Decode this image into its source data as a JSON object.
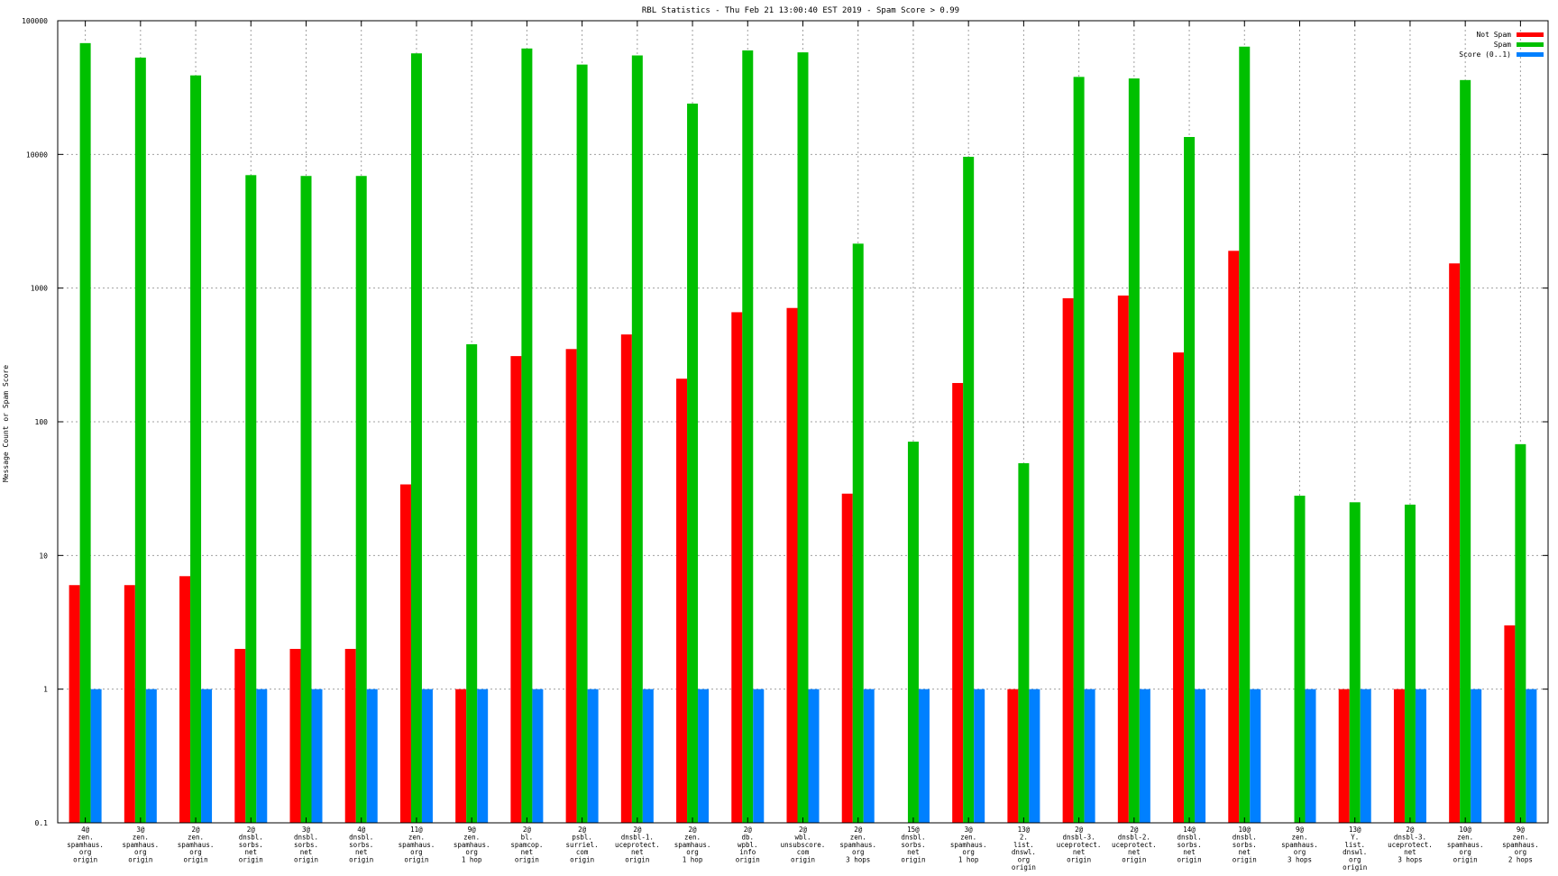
{
  "chart_data": {
    "type": "bar",
    "title": "RBL Statistics - Thu Feb 21 13:00:40 EST 2019 - Spam Score > 0.99",
    "ylabel": "Message Count or Spam Score",
    "xlabel": "",
    "yscale": "log",
    "ylim": [
      0.1,
      100000
    ],
    "yticks": [
      "0.1",
      "1",
      "10",
      "100",
      "1000",
      "10000",
      "100000"
    ],
    "grid": true,
    "legend_position": "top-right",
    "categories": [
      [
        "4@",
        "zen.",
        "spamhaus.",
        "org",
        "origin"
      ],
      [
        "3@",
        "zen.",
        "spamhaus.",
        "org",
        "origin"
      ],
      [
        "2@",
        "zen.",
        "spamhaus.",
        "org",
        "origin"
      ],
      [
        "2@",
        "dnsbl.",
        "sorbs.",
        "net",
        "origin"
      ],
      [
        "3@",
        "dnsbl.",
        "sorbs.",
        "net",
        "origin"
      ],
      [
        "4@",
        "dnsbl.",
        "sorbs.",
        "net",
        "origin"
      ],
      [
        "11@",
        "zen.",
        "spamhaus.",
        "org",
        "origin"
      ],
      [
        "9@",
        "zen.",
        "spamhaus.",
        "org",
        "1 hop"
      ],
      [
        "2@",
        "bl.",
        "spamcop.",
        "net",
        "origin"
      ],
      [
        "2@",
        "psbl.",
        "surriel.",
        "com",
        "origin"
      ],
      [
        "2@",
        "dnsbl-1.",
        "uceprotect.",
        "net",
        "origin"
      ],
      [
        "2@",
        "zen.",
        "spamhaus.",
        "org",
        "1 hop"
      ],
      [
        "2@",
        "db.",
        "wpbl.",
        "info",
        "origin"
      ],
      [
        "2@",
        "wbl.",
        "unsubscore.",
        "com",
        "origin"
      ],
      [
        "2@",
        "zen.",
        "spamhaus.",
        "org",
        "3 hops"
      ],
      [
        "15@",
        "dnsbl.",
        "sorbs.",
        "net",
        "origin"
      ],
      [
        "3@",
        "zen.",
        "spamhaus.",
        "org",
        "1 hop"
      ],
      [
        "13@",
        "2.",
        "list.",
        "dnswl.",
        "org",
        "origin"
      ],
      [
        "2@",
        "dnsbl-3.",
        "uceprotect.",
        "net",
        "origin"
      ],
      [
        "2@",
        "dnsbl-2.",
        "uceprotect.",
        "net",
        "origin"
      ],
      [
        "14@",
        "dnsbl.",
        "sorbs.",
        "net",
        "origin"
      ],
      [
        "10@",
        "dnsbl.",
        "sorbs.",
        "net",
        "origin"
      ],
      [
        "9@",
        "zen.",
        "spamhaus.",
        "org",
        "3 hops"
      ],
      [
        "13@",
        "Y.",
        "list.",
        "dnswl.",
        "org",
        "origin"
      ],
      [
        "2@",
        "dnsbl-3.",
        "uceprotect.",
        "net",
        "3 hops"
      ],
      [
        "10@",
        "zen.",
        "spamhaus.",
        "org",
        "origin"
      ],
      [
        "9@",
        "zen.",
        "spamhaus.",
        "org",
        "2 hops"
      ]
    ],
    "series": [
      {
        "name": "Not Spam",
        "color": "#ff0000",
        "values": [
          6,
          6,
          7,
          2,
          2,
          2,
          34,
          1,
          310,
          350,
          450,
          210,
          660,
          710,
          29,
          null,
          195,
          1,
          840,
          880,
          330,
          1900,
          null,
          1,
          1,
          1530,
          3
        ]
      },
      {
        "name": "Spam",
        "color": "#00c000",
        "values": [
          68000,
          53000,
          39000,
          7000,
          6900,
          6900,
          57000,
          380,
          62000,
          47000,
          55000,
          24000,
          60000,
          58000,
          2150,
          71,
          9600,
          49,
          38000,
          37000,
          13500,
          64000,
          28,
          25,
          24,
          36000,
          68
        ]
      },
      {
        "name": "Score (0..1)",
        "color": "#0080ff",
        "values": [
          1,
          1,
          1,
          1,
          1,
          1,
          1,
          1,
          1,
          1,
          1,
          1,
          1,
          1,
          1,
          1,
          1,
          1,
          1,
          1,
          1,
          1,
          1,
          1,
          1,
          1,
          1
        ]
      }
    ]
  }
}
